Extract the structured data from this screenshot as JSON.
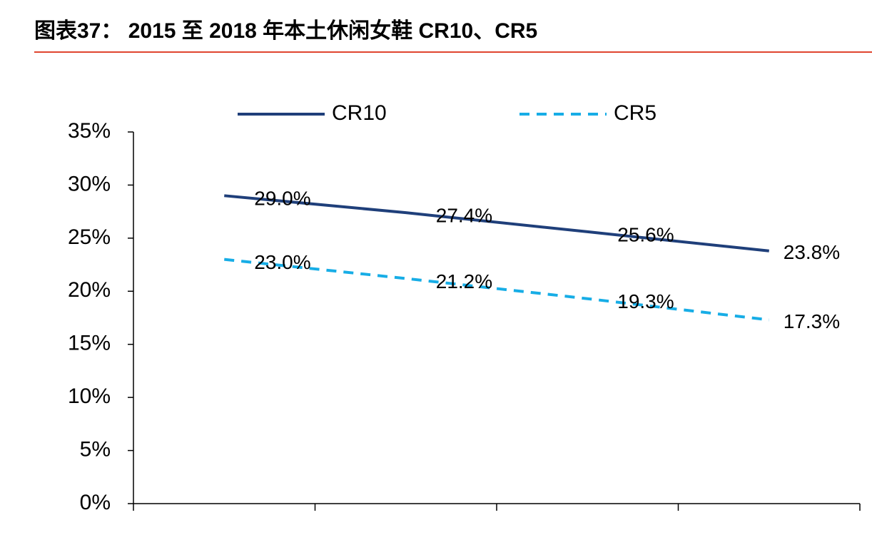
{
  "chart_data": {
    "type": "line",
    "title": "图表37： 2015 至 2018 年本土休闲女鞋 CR10、CR5",
    "categories": [
      null,
      null,
      null,
      null
    ],
    "series": [
      {
        "name": "CR10",
        "color": "#1f3f7a",
        "dash": false,
        "values": [
          29.0,
          27.4,
          25.6,
          23.8
        ],
        "value_labels": [
          "29.0%",
          "27.4%",
          "25.6%",
          "23.8%"
        ]
      },
      {
        "name": "CR5",
        "color": "#17ade6",
        "dash": true,
        "values": [
          23.0,
          21.2,
          19.3,
          17.3
        ],
        "value_labels": [
          "23.0%",
          "21.2%",
          "19.3%",
          "17.3%"
        ]
      }
    ],
    "ylim": [
      0,
      35
    ],
    "yticks": [
      {
        "value": 0,
        "label": "0%"
      },
      {
        "value": 5,
        "label": "5%"
      },
      {
        "value": 10,
        "label": "10%"
      },
      {
        "value": 15,
        "label": "15%"
      },
      {
        "value": 20,
        "label": "20%"
      },
      {
        "value": 25,
        "label": "25%"
      },
      {
        "value": 30,
        "label": "30%"
      },
      {
        "value": 35,
        "label": "35%"
      }
    ],
    "grid": false,
    "legend": "top"
  }
}
